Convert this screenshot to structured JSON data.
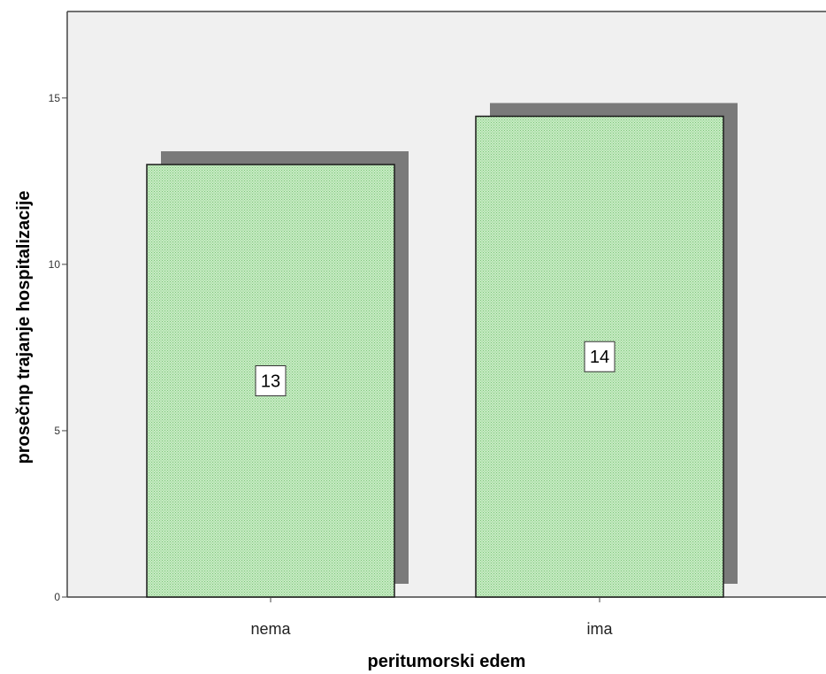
{
  "chart_data": {
    "type": "bar",
    "categories": [
      "nema",
      "ima"
    ],
    "values": [
      13.0,
      14.45
    ],
    "data_labels": [
      "13",
      "14"
    ],
    "xlabel": "peritumorski edem",
    "ylabel": "prosečnp trajanje hospitalizacije",
    "ylim": [
      0,
      17.6
    ],
    "yticks": [
      0,
      5,
      10,
      15
    ],
    "grid": false,
    "legend": "none",
    "style": {
      "bar_fill": "#c8ecc4",
      "bar_pattern": "#7cc47a",
      "bar_stroke": "#1a1a1a",
      "shadow": "#7a7a7a",
      "plot_background": "#f0f0f0",
      "frame": "#444444",
      "label_box": "#ffffff"
    }
  }
}
